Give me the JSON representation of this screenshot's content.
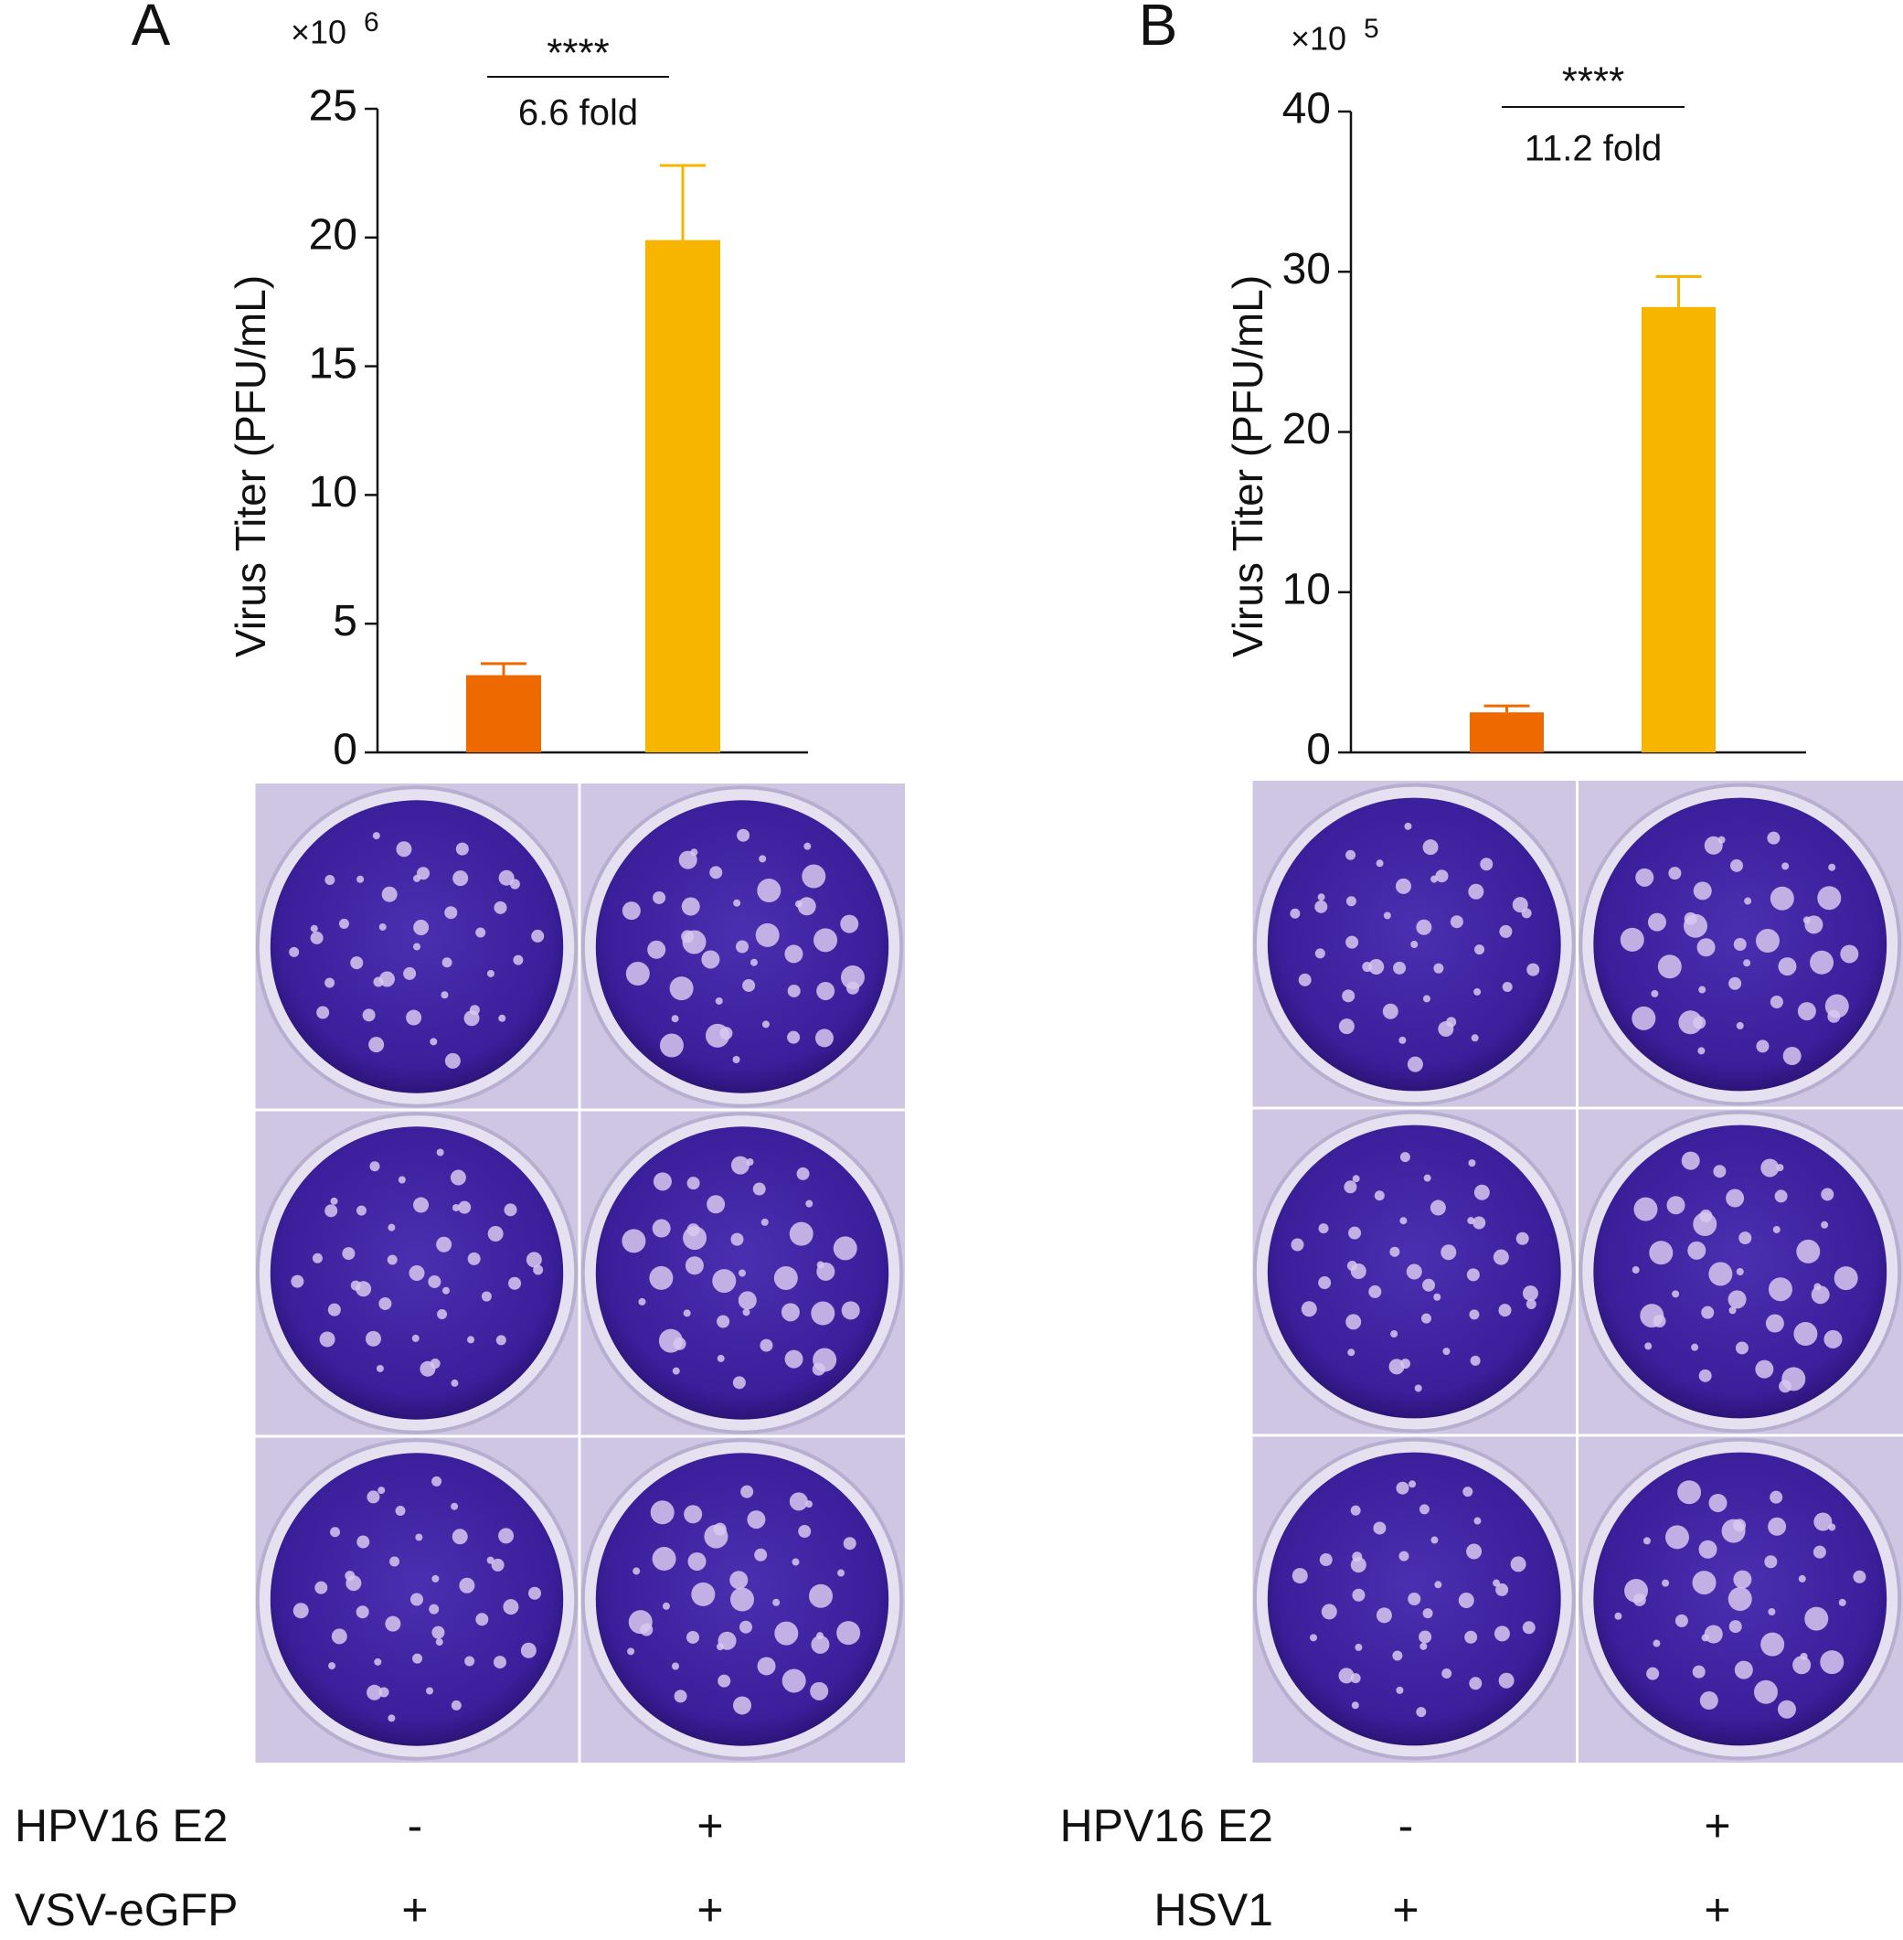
{
  "chart_data": [
    {
      "type": "bar",
      "panel": "A",
      "multiplier": "×10",
      "exponent": "6",
      "ylabel": "Virus Titer (PFU/mL)",
      "values": [
        3.0,
        19.9
      ],
      "errors": [
        0.45,
        2.9
      ],
      "colors": [
        "#ee6a00",
        "#f7b500"
      ],
      "ylim": [
        0,
        25
      ],
      "yticks": [
        0,
        5,
        10,
        15,
        20,
        25
      ],
      "significance": "****",
      "annotation": "6.6 fold",
      "conditions": [
        {
          "name": "HPV16 E2",
          "values": [
            "-",
            "+"
          ]
        },
        {
          "name": "VSV-eGFP",
          "values": [
            "+",
            "+"
          ]
        }
      ]
    },
    {
      "type": "bar",
      "panel": "B",
      "multiplier": "×10",
      "exponent": "5",
      "ylabel": "Virus Titer (PFU/mL)",
      "values": [
        2.5,
        27.8
      ],
      "errors": [
        0.4,
        1.9
      ],
      "colors": [
        "#ee6a00",
        "#f7b500"
      ],
      "ylim": [
        0,
        40
      ],
      "yticks": [
        0,
        10,
        20,
        30,
        40
      ],
      "significance": "****",
      "annotation": "11.2 fold",
      "conditions": [
        {
          "name": "HPV16 E2",
          "values": [
            "-",
            "+"
          ]
        },
        {
          "name": "HSV1",
          "values": [
            "+",
            "+"
          ]
        }
      ]
    }
  ]
}
